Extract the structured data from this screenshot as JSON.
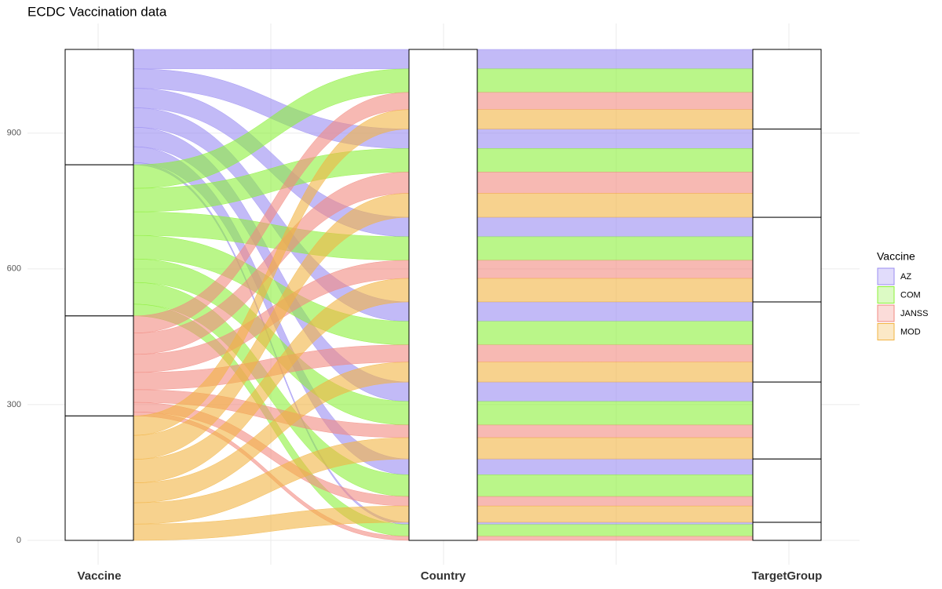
{
  "chart_data": {
    "type": "alluvial",
    "title": "ECDC Vaccination data",
    "axes": [
      "Vaccine",
      "Country",
      "TargetGroup"
    ],
    "legend_title": "Vaccine",
    "series": [
      {
        "name": "AZ",
        "color": "#9a8cf2",
        "values": [
          5,
          35,
          43,
          43,
          43,
          43,
          43
        ]
      },
      {
        "name": "COM",
        "color": "#8cf03a",
        "values": [
          26,
          48,
          52,
          52,
          52,
          52,
          52
        ]
      },
      {
        "name": "JANSS",
        "color": "#f28a80",
        "values": [
          9,
          21,
          28,
          38,
          40,
          47,
          38
        ]
      },
      {
        "name": "MOD",
        "color": "#f2b443",
        "values": [
          0,
          36,
          47,
          44,
          52,
          53,
          43
        ]
      }
    ],
    "ylim": [
      0,
      1085
    ],
    "yticks": [
      0,
      300,
      600,
      900
    ],
    "grid": true
  }
}
